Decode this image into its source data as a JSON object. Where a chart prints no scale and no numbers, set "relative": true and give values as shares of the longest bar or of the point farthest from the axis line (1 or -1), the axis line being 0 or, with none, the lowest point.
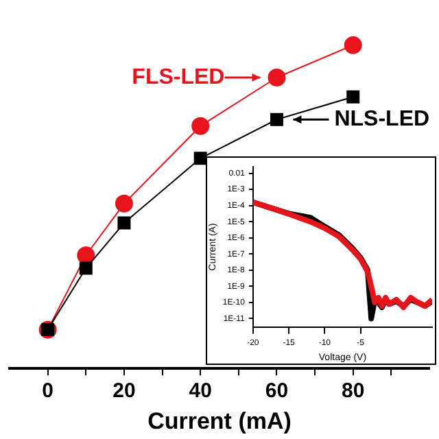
{
  "chart_data": [
    {
      "type": "line",
      "xlabel": "Current (mA)",
      "relative": true,
      "x": [
        0,
        10,
        20,
        40,
        60,
        80
      ],
      "xlim": [
        -10,
        100
      ],
      "xticks": [
        0,
        {
          "value": 10,
          "label": null
        },
        20,
        {
          "value": 30,
          "label": null
        },
        40,
        {
          "value": 50,
          "label": null
        },
        60,
        {
          "value": 70,
          "label": null
        },
        80,
        {
          "value": 90,
          "label": null
        }
      ],
      "series": [
        {
          "name": "FLS-LED",
          "color": "#e8141b",
          "marker": "circle",
          "values": [
            0.12,
            0.35,
            0.51,
            0.75,
            0.9,
            1.0
          ]
        },
        {
          "name": "NLS-LED",
          "color": "#000000",
          "marker": "square",
          "values": [
            0.12,
            0.31,
            0.45,
            0.65,
            0.77,
            0.84
          ]
        }
      ]
    },
    {
      "type": "line",
      "xlabel": "Voltage (V)",
      "ylabel": "Current (A)",
      "log": true,
      "legend": false,
      "marker": "none",
      "xlim": [
        -20,
        5
      ],
      "xticks": [
        -20,
        -15,
        -10,
        -5
      ],
      "ylim": [
        3e-12,
        0.025
      ],
      "yticks": [
        {
          "value": 0.01,
          "label": "0.01"
        },
        {
          "value": 0.001,
          "label": "1E-3"
        },
        {
          "value": 0.0001,
          "label": "1E-4"
        },
        {
          "value": 1e-05,
          "label": "1E-5"
        },
        {
          "value": 1e-06,
          "label": "1E-6"
        },
        {
          "value": 1e-07,
          "label": "1E-7"
        },
        {
          "value": 1e-08,
          "label": "1E-8"
        },
        {
          "value": 1e-09,
          "label": "1E-9"
        },
        {
          "value": 1e-10,
          "label": "1E-10"
        },
        {
          "value": 1e-11,
          "label": "1E-11"
        }
      ],
      "series": [
        {
          "color": "#000000",
          "x": [
            -20,
            -17,
            -15,
            -12,
            -10,
            -8,
            -6,
            -5,
            -4,
            -3.5,
            -3,
            -2.5,
            -2,
            -1.5,
            -1,
            0,
            1,
            2,
            3,
            4,
            5
          ],
          "values": [
            0.00016,
            6e-05,
            3.2e-05,
            1.8e-05,
            5e-06,
            1.5e-06,
            2e-07,
            6e-08,
            1e-08,
            1e-11,
            1.5e-10,
            1e-10,
            5e-11,
            1.5e-10,
            8e-11,
            1.2e-10,
            6e-11,
            1.5e-10,
            1e-10,
            6e-11,
            1.2e-10
          ]
        },
        {
          "color": "#e8141b",
          "x": [
            -20,
            -17,
            -15,
            -12,
            -10,
            -8,
            -6,
            -5,
            -4,
            -3.5,
            -3,
            -2.5,
            -2,
            -1.5,
            -1,
            0,
            1,
            2,
            3,
            4,
            5
          ],
          "values": [
            0.00016,
            6e-05,
            3e-05,
            1e-05,
            4e-06,
            1.2e-06,
            1.6e-07,
            5e-08,
            8e-09,
            1e-09,
            1e-10,
            2e-10,
            6e-11,
            2e-10,
            8e-11,
            1.5e-10,
            5e-11,
            2e-10,
            1e-10,
            6e-11,
            1.5e-10
          ]
        }
      ]
    }
  ]
}
